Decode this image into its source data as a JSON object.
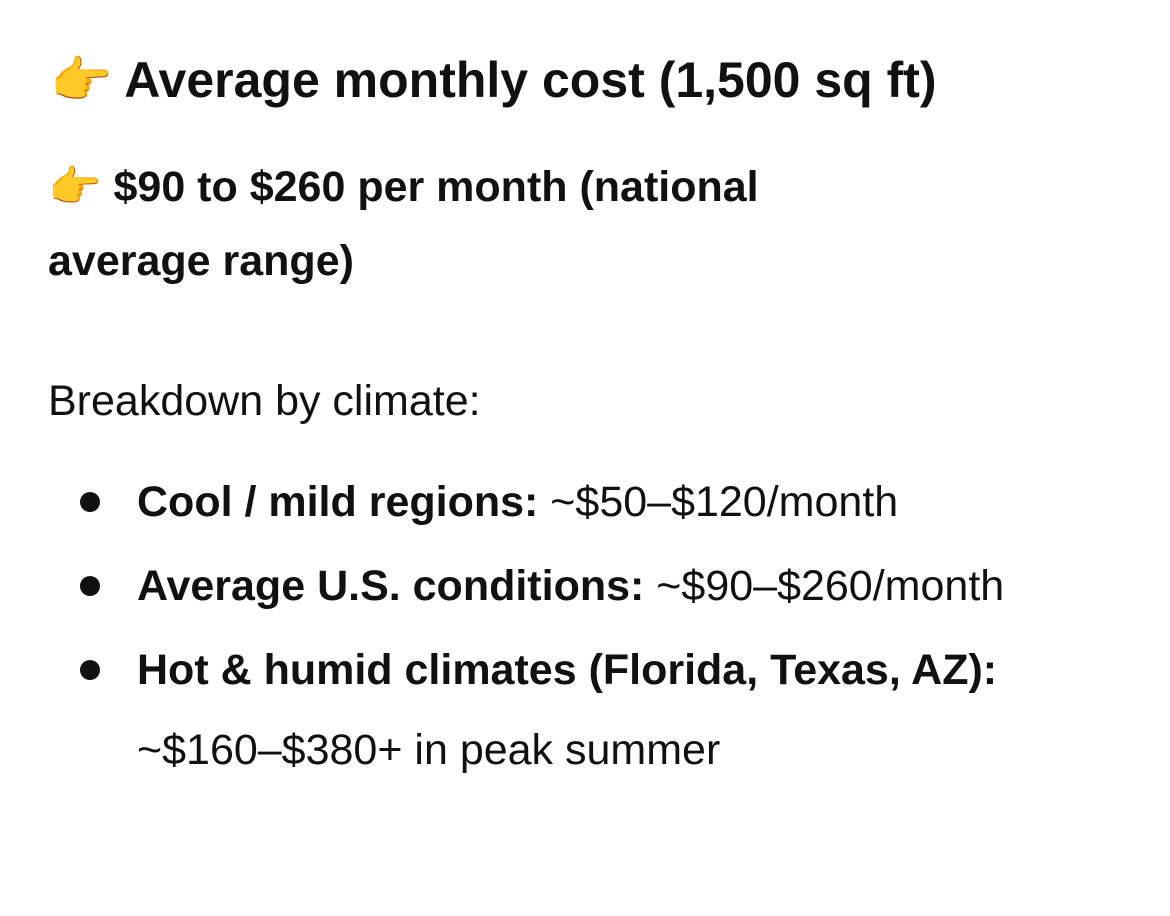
{
  "heading": "👉 Average monthly cost (1,500 sq ft)",
  "subheading": "👉 $90 to $260 per month (national average range)",
  "section_label": "Breakdown by climate:",
  "items": [
    {
      "label": "Cool / mild regions:",
      "value": "~$50–$120/month"
    },
    {
      "label": "Average U.S. conditions:",
      "value": "~$90–$260/month"
    },
    {
      "label": "Hot & humid climates (Florida, Texas, AZ):",
      "value": "~$160–$380+ in peak summer"
    }
  ]
}
